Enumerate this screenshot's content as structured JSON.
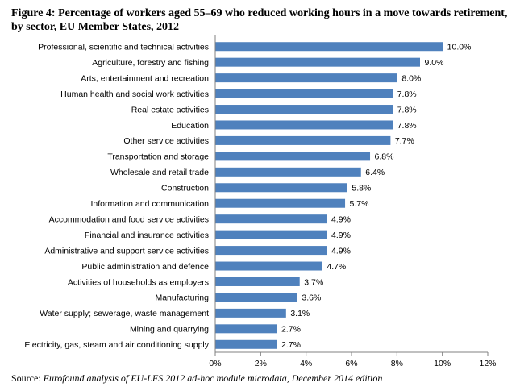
{
  "title_line1": "Figure 4: Percentage of workers aged 55–69 who reduced working hours in a move towards retirement,",
  "title_line2": "by sector, EU Member States, 2012",
  "source_prefix": "Source: ",
  "source_text": "Eurofound analysis of EU-LFS 2012 ad-hoc module microdata, December 2014 edition",
  "colors": {
    "bar": "#4f81bd",
    "axis": "#808080"
  },
  "chart_data": {
    "type": "bar",
    "orientation": "horizontal",
    "categories": [
      "Professional, scientific and technical activities",
      "Agriculture, forestry and fishing",
      "Arts, entertainment and recreation",
      "Human health and social work activities",
      "Real estate activities",
      "Education",
      "Other service activities",
      "Transportation and storage",
      "Wholesale and retail trade",
      "Construction",
      "Information and communication",
      "Accommodation and food service activities",
      "Financial and insurance activities",
      "Administrative and support service activities",
      "Public administration and defence",
      "Activities of households as employers",
      "Manufacturing",
      "Water supply; sewerage, waste management",
      "Mining and quarrying",
      "Electricity, gas, steam and air conditioning supply"
    ],
    "values": [
      10.0,
      9.0,
      8.0,
      7.8,
      7.8,
      7.8,
      7.7,
      6.8,
      6.4,
      5.8,
      5.7,
      4.9,
      4.9,
      4.9,
      4.7,
      3.7,
      3.6,
      3.1,
      2.7,
      2.7
    ],
    "value_labels": [
      "10.0%",
      "9.0%",
      "8.0%",
      "7.8%",
      "7.8%",
      "7.8%",
      "7.7%",
      "6.8%",
      "6.4%",
      "5.8%",
      "5.7%",
      "4.9%",
      "4.9%",
      "4.9%",
      "4.7%",
      "3.7%",
      "3.6%",
      "3.1%",
      "2.7%",
      "2.7%"
    ],
    "xlim": [
      0,
      12
    ],
    "x_ticks": [
      0,
      2,
      4,
      6,
      8,
      10,
      12
    ],
    "x_tick_labels": [
      "0%",
      "2%",
      "4%",
      "6%",
      "8%",
      "10%",
      "12%"
    ],
    "xlabel": "",
    "ylabel": "",
    "grid": false,
    "legend": "none"
  }
}
